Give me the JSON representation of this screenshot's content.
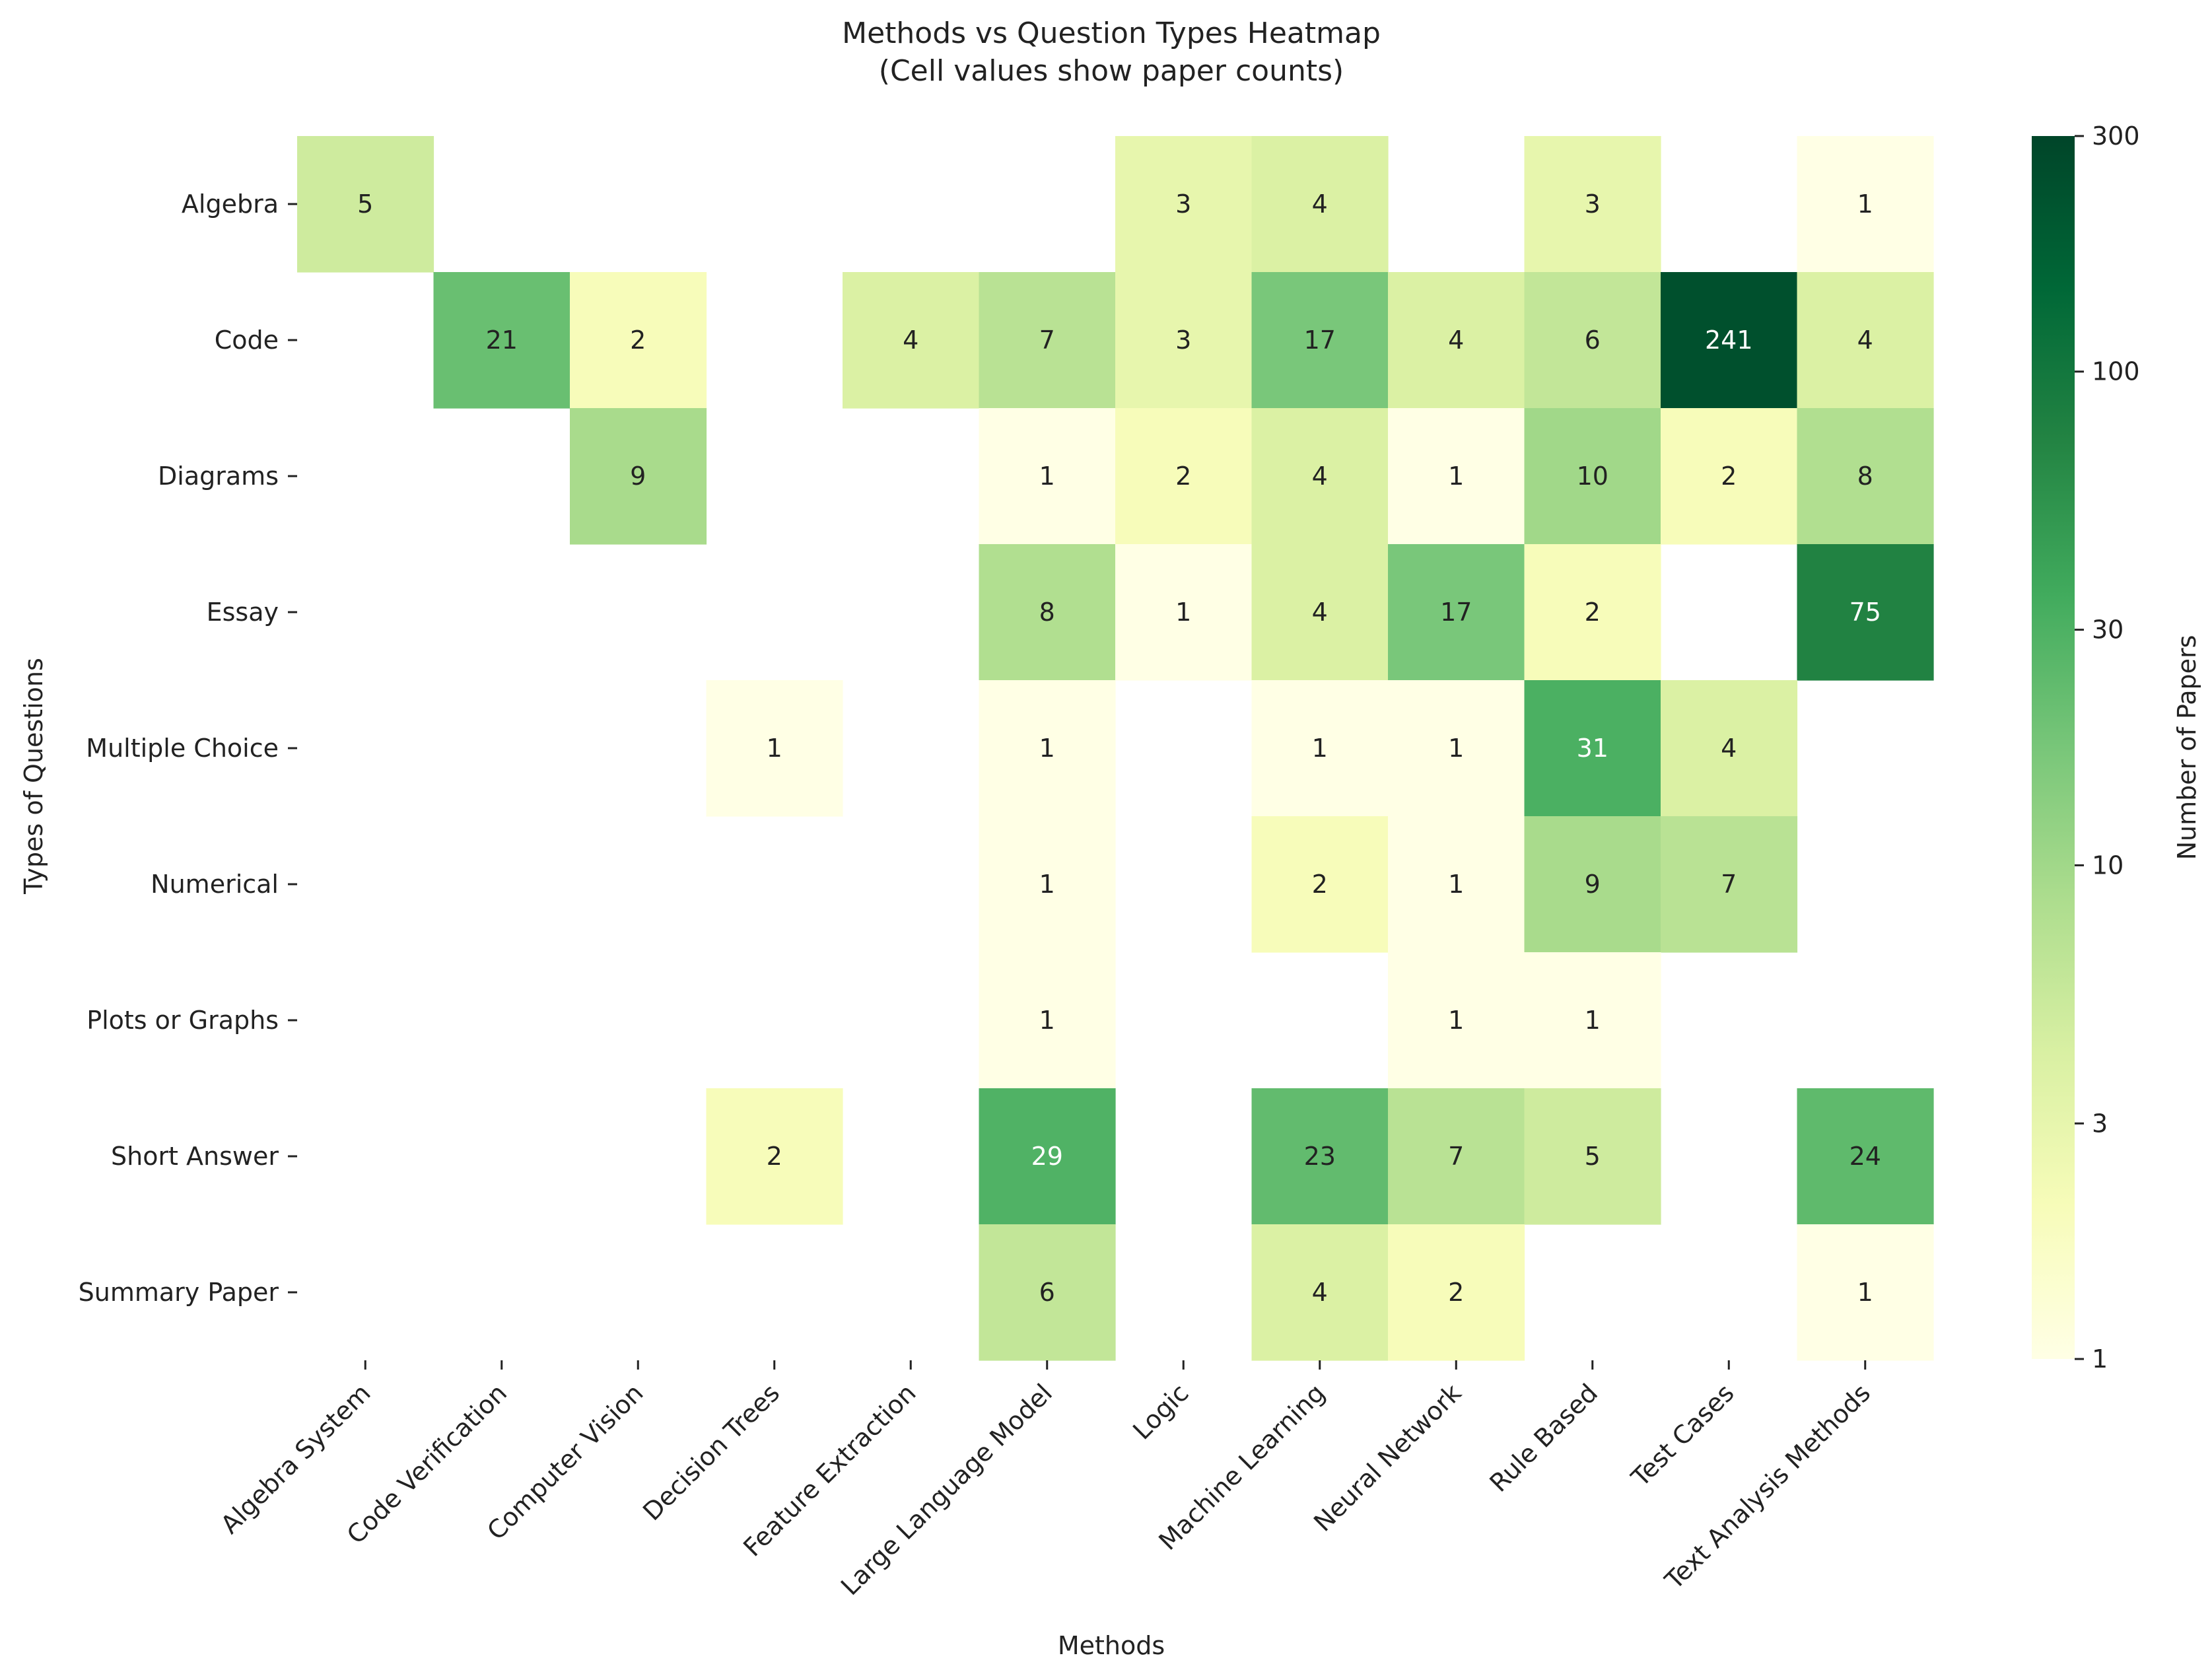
{
  "chart_data": {
    "type": "heatmap",
    "title_lines": [
      "Methods vs Question Types Heatmap",
      "(Cell values show paper counts)"
    ],
    "xlabel": "Methods",
    "ylabel": "Types of Questions",
    "columns": [
      "Algebra System",
      "Code Verification",
      "Computer Vision",
      "Decision Trees",
      "Feature Extraction",
      "Large Language Model",
      "Logic",
      "Machine Learning",
      "Neural Network",
      "Rule Based",
      "Test Cases",
      "Text Analysis Methods"
    ],
    "rows": [
      "Algebra",
      "Code",
      "Diagrams",
      "Essay",
      "Multiple Choice",
      "Numerical",
      "Plots or Graphs",
      "Short Answer",
      "Summary Paper"
    ],
    "values": [
      [
        5,
        null,
        null,
        null,
        null,
        null,
        3,
        4,
        null,
        3,
        null,
        1
      ],
      [
        null,
        21,
        2,
        null,
        4,
        7,
        3,
        17,
        4,
        6,
        241,
        4
      ],
      [
        null,
        null,
        9,
        null,
        null,
        1,
        2,
        4,
        1,
        10,
        2,
        8
      ],
      [
        null,
        null,
        null,
        null,
        null,
        8,
        1,
        4,
        17,
        2,
        null,
        75
      ],
      [
        null,
        null,
        null,
        1,
        null,
        1,
        null,
        1,
        1,
        31,
        4,
        null
      ],
      [
        null,
        null,
        null,
        null,
        null,
        1,
        null,
        2,
        1,
        9,
        7,
        null
      ],
      [
        null,
        null,
        null,
        null,
        null,
        1,
        null,
        null,
        1,
        1,
        null,
        null
      ],
      [
        null,
        null,
        null,
        2,
        null,
        29,
        null,
        23,
        7,
        5,
        null,
        24
      ],
      [
        null,
        null,
        null,
        null,
        null,
        6,
        null,
        4,
        2,
        null,
        null,
        1
      ]
    ],
    "colorbar": {
      "label": "Number of Papers",
      "scale": "log",
      "range": [
        1,
        300
      ],
      "ticks": [
        1,
        3,
        10,
        30,
        100,
        300
      ],
      "tick_labels": [
        "1",
        "3",
        "10",
        "30",
        "100",
        "300"
      ],
      "colormap": "YlGn"
    }
  }
}
